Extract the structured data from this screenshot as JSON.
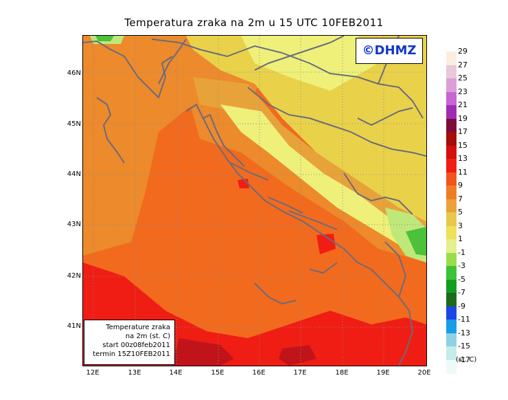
{
  "title": "Temperatura zraka na 2m u 15 UTC 10FEB2011",
  "logo": "©DHMZ",
  "info_box": {
    "line1": "Temperature zraka",
    "line2": "na 2m (st. C)",
    "line3": "start 00z08feb2011",
    "line4": "termin 15Z10FEB2011"
  },
  "map": {
    "lat_labels": [
      "46N",
      "45N",
      "44N",
      "43N",
      "42N",
      "41N"
    ],
    "lon_labels": [
      "12E",
      "13E",
      "14E",
      "15E",
      "16E",
      "17E",
      "18E",
      "19E",
      "20E"
    ],
    "colors": {
      "sea_warm": "#f26a1e",
      "coast_orange": "#ec8a2c",
      "mid_orange": "#e8a23a",
      "yellow": "#e9d24a",
      "pale_yellow": "#eef07a",
      "light_green": "#bfe87a",
      "green": "#4cc13a",
      "red": "#f01d14",
      "dark_red": "#c0141a",
      "coast_line": "#6b6b7b",
      "grid": "#8c8c8c"
    }
  },
  "legend": {
    "unit": "(st. C)",
    "items": [
      {
        "label": "29",
        "color": "#fbeee0"
      },
      {
        "label": "27",
        "color": "#e9c8d8"
      },
      {
        "label": "25",
        "color": "#dc9ed8"
      },
      {
        "label": "23",
        "color": "#c765d2"
      },
      {
        "label": "21",
        "color": "#a02cb6"
      },
      {
        "label": "19",
        "color": "#7e0a3c"
      },
      {
        "label": "17",
        "color": "#a60c0c"
      },
      {
        "label": "15",
        "color": "#d40e0e"
      },
      {
        "label": "13",
        "color": "#f01d14"
      },
      {
        "label": "11",
        "color": "#f2541e"
      },
      {
        "label": "9",
        "color": "#ef7d28"
      },
      {
        "label": "7",
        "color": "#eba23a"
      },
      {
        "label": "5",
        "color": "#e8c84a"
      },
      {
        "label": "3",
        "color": "#eee058"
      },
      {
        "label": "1",
        "color": "#e4ef8e"
      },
      {
        "label": "-1",
        "color": "#9adc4a"
      },
      {
        "label": "-3",
        "color": "#3ec23a"
      },
      {
        "label": "-5",
        "color": "#0f9e1e"
      },
      {
        "label": "-7",
        "color": "#1c6b1c"
      },
      {
        "label": "-9",
        "color": "#1e46e6"
      },
      {
        "label": "-11",
        "color": "#189ee6"
      },
      {
        "label": "-13",
        "color": "#8fd0e2"
      },
      {
        "label": "-15",
        "color": "#c4ecec"
      },
      {
        "label": "-17",
        "color": "#ecfafa"
      }
    ]
  }
}
